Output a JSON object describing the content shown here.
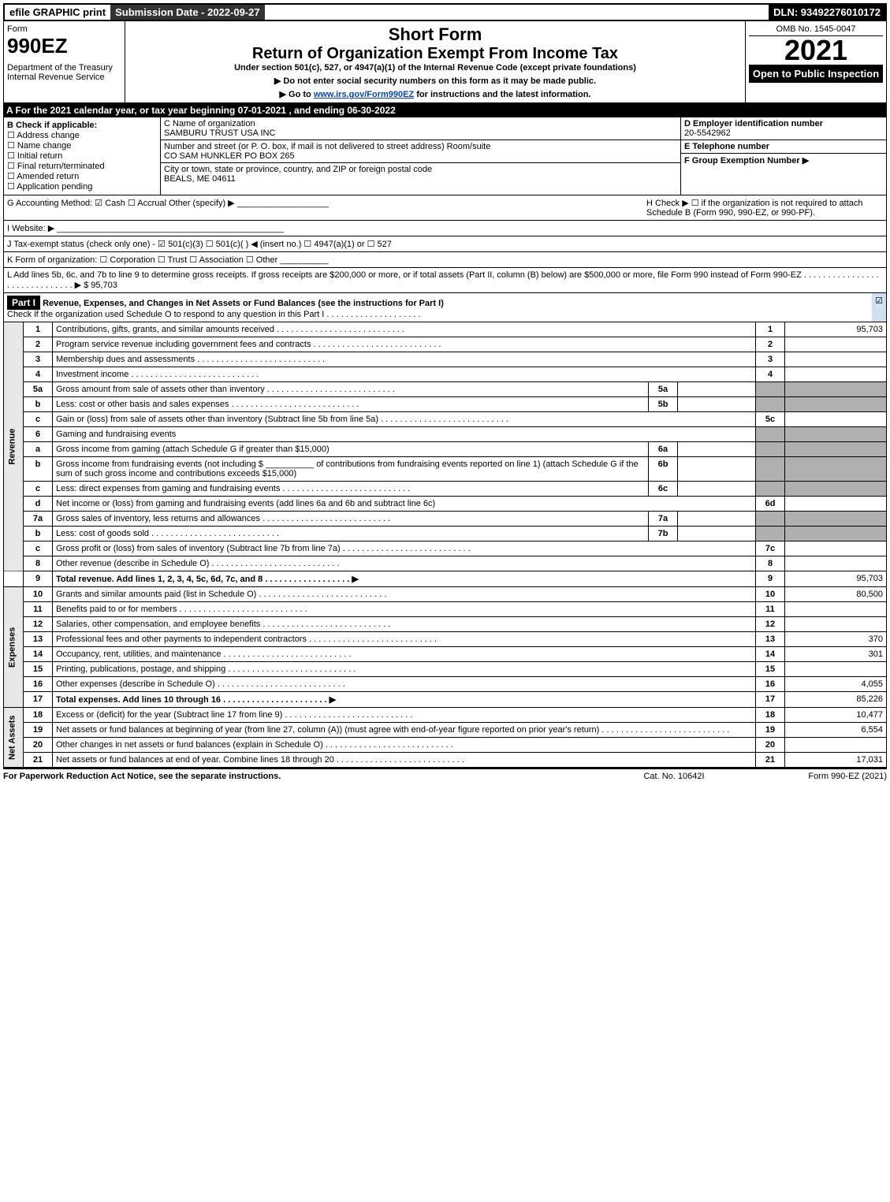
{
  "topbar": {
    "efile": "efile GRAPHIC print",
    "submission": "Submission Date - 2022-09-27",
    "dln": "DLN: 93492276010172"
  },
  "header": {
    "form_word": "Form",
    "form_number": "990EZ",
    "dept": "Department of the Treasury\nInternal Revenue Service",
    "short_form": "Short Form",
    "title": "Return of Organization Exempt From Income Tax",
    "under": "Under section 501(c), 527, or 4947(a)(1) of the Internal Revenue Code (except private foundations)",
    "arrow1": "▶ Do not enter social security numbers on this form as it may be made public.",
    "arrow2_pre": "▶ Go to ",
    "arrow2_link": "www.irs.gov/Form990EZ",
    "arrow2_post": " for instructions and the latest information.",
    "omb": "OMB No. 1545-0047",
    "year": "2021",
    "open": "Open to Public Inspection"
  },
  "A": "A  For the 2021 calendar year, or tax year beginning 07-01-2021 , and ending 06-30-2022",
  "B": {
    "label": "B  Check if applicable:",
    "opts": [
      "☐ Address change",
      "☐ Name change",
      "☐ Initial return",
      "☐ Final return/terminated",
      "☐ Amended return",
      "☐ Application pending"
    ]
  },
  "C": {
    "name_lbl": "C Name of organization",
    "name": "SAMBURU TRUST USA INC",
    "addr_lbl": "Number and street (or P. O. box, if mail is not delivered to street address)       Room/suite",
    "addr": "CO SAM HUNKLER PO BOX 265",
    "city_lbl": "City or town, state or province, country, and ZIP or foreign postal code",
    "city": "BEALS, ME  04611"
  },
  "D": {
    "lbl": "D Employer identification number",
    "val": "20-5542962"
  },
  "E": {
    "lbl": "E Telephone number",
    "val": ""
  },
  "F": {
    "lbl": "F Group Exemption Number   ▶",
    "val": ""
  },
  "G": "G Accounting Method:   ☑ Cash  ☐ Accrual   Other (specify) ▶ ___________________",
  "H": "H   Check ▶  ☐  if the organization is not required to attach Schedule B (Form 990, 990-EZ, or 990-PF).",
  "I": "I Website: ▶ _______________________________________________",
  "J": "J Tax-exempt status (check only one) -  ☑ 501(c)(3)  ☐  501(c)(   ) ◀ (insert no.)  ☐  4947(a)(1) or  ☐  527",
  "K": "K Form of organization:   ☐ Corporation   ☐ Trust   ☐ Association   ☐ Other  __________",
  "L": "L Add lines 5b, 6c, and 7b to line 9 to determine gross receipts. If gross receipts are $200,000 or more, or if total assets (Part II, column (B) below) are $500,000 or more, file Form 990 instead of Form 990-EZ  .  .  .  .  .  .  .  .  .  .  .  .  .  .  .  .  .  .  .  .  .  .  .  .  .  .  .  .  .  .  ▶ $ 95,703",
  "partI": {
    "label": "Part I",
    "title": "Revenue, Expenses, and Changes in Net Assets or Fund Balances (see the instructions for Part I)",
    "check_txt": "Check if the organization used Schedule O to respond to any question in this Part I .  .  .  .  .  .  .  .  .  .  .  .  .  .  .  .  .  .  .  .",
    "check_mark": "☑"
  },
  "sides": {
    "rev": "Revenue",
    "exp": "Expenses",
    "na": "Net Assets"
  },
  "lines": {
    "l1": {
      "n": "1",
      "d": "Contributions, gifts, grants, and similar amounts received",
      "c": "1",
      "a": "95,703"
    },
    "l2": {
      "n": "2",
      "d": "Program service revenue including government fees and contracts",
      "c": "2",
      "a": ""
    },
    "l3": {
      "n": "3",
      "d": "Membership dues and assessments",
      "c": "3",
      "a": ""
    },
    "l4": {
      "n": "4",
      "d": "Investment income",
      "c": "4",
      "a": ""
    },
    "l5a": {
      "n": "5a",
      "d": "Gross amount from sale of assets other than inventory",
      "sn": "5a",
      "sv": ""
    },
    "l5b": {
      "n": "b",
      "d": "Less: cost or other basis and sales expenses",
      "sn": "5b",
      "sv": ""
    },
    "l5c": {
      "n": "c",
      "d": "Gain or (loss) from sale of assets other than inventory (Subtract line 5b from line 5a)",
      "c": "5c",
      "a": ""
    },
    "l6": {
      "n": "6",
      "d": "Gaming and fundraising events"
    },
    "l6a": {
      "n": "a",
      "d": "Gross income from gaming (attach Schedule G if greater than $15,000)",
      "sn": "6a",
      "sv": ""
    },
    "l6b": {
      "n": "b",
      "d": "Gross income from fundraising events (not including $ __________ of contributions from fundraising events reported on line 1) (attach Schedule G if the sum of such gross income and contributions exceeds $15,000)",
      "sn": "6b",
      "sv": ""
    },
    "l6c": {
      "n": "c",
      "d": "Less: direct expenses from gaming and fundraising events",
      "sn": "6c",
      "sv": ""
    },
    "l6d": {
      "n": "d",
      "d": "Net income or (loss) from gaming and fundraising events (add lines 6a and 6b and subtract line 6c)",
      "c": "6d",
      "a": ""
    },
    "l7a": {
      "n": "7a",
      "d": "Gross sales of inventory, less returns and allowances",
      "sn": "7a",
      "sv": ""
    },
    "l7b": {
      "n": "b",
      "d": "Less: cost of goods sold",
      "sn": "7b",
      "sv": ""
    },
    "l7c": {
      "n": "c",
      "d": "Gross profit or (loss) from sales of inventory (Subtract line 7b from line 7a)",
      "c": "7c",
      "a": ""
    },
    "l8": {
      "n": "8",
      "d": "Other revenue (describe in Schedule O)",
      "c": "8",
      "a": ""
    },
    "l9": {
      "n": "9",
      "d": "Total revenue. Add lines 1, 2, 3, 4, 5c, 6d, 7c, and 8   .  .  .  .  .  .  .  .  .  .  .  .  .  .  .  .  .  .  ▶",
      "c": "9",
      "a": "95,703"
    },
    "l10": {
      "n": "10",
      "d": "Grants and similar amounts paid (list in Schedule O)",
      "c": "10",
      "a": "80,500"
    },
    "l11": {
      "n": "11",
      "d": "Benefits paid to or for members",
      "c": "11",
      "a": ""
    },
    "l12": {
      "n": "12",
      "d": "Salaries, other compensation, and employee benefits",
      "c": "12",
      "a": ""
    },
    "l13": {
      "n": "13",
      "d": "Professional fees and other payments to independent contractors",
      "c": "13",
      "a": "370"
    },
    "l14": {
      "n": "14",
      "d": "Occupancy, rent, utilities, and maintenance",
      "c": "14",
      "a": "301"
    },
    "l15": {
      "n": "15",
      "d": "Printing, publications, postage, and shipping",
      "c": "15",
      "a": ""
    },
    "l16": {
      "n": "16",
      "d": "Other expenses (describe in Schedule O)",
      "c": "16",
      "a": "4,055"
    },
    "l17": {
      "n": "17",
      "d": "Total expenses. Add lines 10 through 16   .  .  .  .  .  .  .  .  .  .  .  .  .  .  .  .  .  .  .  .  .  .  ▶",
      "c": "17",
      "a": "85,226"
    },
    "l18": {
      "n": "18",
      "d": "Excess or (deficit) for the year (Subtract line 17 from line 9)",
      "c": "18",
      "a": "10,477"
    },
    "l19": {
      "n": "19",
      "d": "Net assets or fund balances at beginning of year (from line 27, column (A)) (must agree with end-of-year figure reported on prior year's return)",
      "c": "19",
      "a": "6,554"
    },
    "l20": {
      "n": "20",
      "d": "Other changes in net assets or fund balances (explain in Schedule O)",
      "c": "20",
      "a": ""
    },
    "l21": {
      "n": "21",
      "d": "Net assets or fund balances at end of year. Combine lines 18 through 20",
      "c": "21",
      "a": "17,031"
    }
  },
  "footer": {
    "left": "For Paperwork Reduction Act Notice, see the separate instructions.",
    "mid": "Cat. No. 10642I",
    "right": "Form 990-EZ (2021)"
  }
}
